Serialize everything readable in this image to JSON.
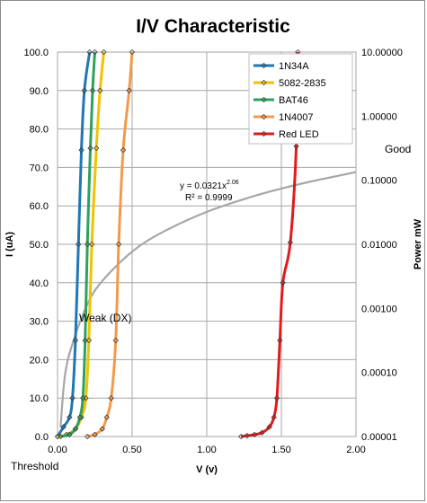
{
  "chart_data": {
    "type": "line",
    "title": "I/V Characteristic",
    "xlabel": "V (v)",
    "ylabel": "I (uA)",
    "y2label": "Power  mW",
    "xlim": [
      0,
      2.0
    ],
    "ylim": [
      0,
      100
    ],
    "y2lim": [
      1e-05,
      10
    ],
    "y2scale": "log",
    "grid": true,
    "legend_position": "top-right",
    "x_ticks": [
      "0.00",
      "0.50",
      "1.00",
      "1.50",
      "2.00"
    ],
    "y_ticks": [
      "0.0",
      "10.0",
      "20.0",
      "30.0",
      "40.0",
      "50.0",
      "60.0",
      "70.0",
      "80.0",
      "90.0",
      "100.0"
    ],
    "y2_ticks": [
      "0.00001",
      "0.00010",
      "0.00100",
      "0.01000",
      "0.10000",
      "1.00000",
      "10.00000"
    ],
    "series": [
      {
        "name": "1N34A",
        "color": "#1f77b4",
        "x": [
          0.0,
          0.04,
          0.08,
          0.1,
          0.12,
          0.14,
          0.16,
          0.18,
          0.215
        ],
        "y": [
          0.0,
          2.5,
          5.0,
          10.0,
          25.0,
          50.0,
          74.5,
          90.0,
          100.0
        ]
      },
      {
        "name": "5082-2835",
        "color": "#f2c200",
        "x": [
          0.0,
          0.06,
          0.12,
          0.16,
          0.19,
          0.21,
          0.23,
          0.26,
          0.285,
          0.31
        ],
        "y": [
          0.0,
          0.5,
          2.0,
          5.0,
          10.0,
          25.0,
          50.0,
          75.0,
          90.0,
          100.0
        ]
      },
      {
        "name": "BAT46",
        "color": "#2ca25f",
        "x": [
          0.02,
          0.08,
          0.12,
          0.15,
          0.17,
          0.185,
          0.2,
          0.22,
          0.235,
          0.25
        ],
        "y": [
          0.0,
          0.5,
          2.0,
          5.0,
          10.0,
          25.0,
          50.0,
          75.0,
          90.0,
          100.0
        ]
      },
      {
        "name": "1N4007",
        "color": "#f39a4a",
        "x": [
          0.2,
          0.25,
          0.3,
          0.33,
          0.36,
          0.39,
          0.41,
          0.44,
          0.48,
          0.5
        ],
        "y": [
          0.0,
          0.5,
          2.0,
          5.0,
          10.0,
          25.0,
          50.0,
          74.5,
          90.0,
          100.0
        ]
      },
      {
        "name": "Red LED",
        "color": "#e31a1c",
        "x": [
          1.23,
          1.27,
          1.32,
          1.37,
          1.42,
          1.45,
          1.47,
          1.49,
          1.51,
          1.56,
          1.6,
          1.61
        ],
        "y": [
          0.0,
          0.2,
          0.5,
          1.0,
          2.5,
          5.0,
          10.0,
          25.0,
          40.0,
          50.5,
          75.5,
          100.0
        ]
      }
    ],
    "power_curve": {
      "color": "#a6a6a6",
      "axis": "y2",
      "x": [
        0.02,
        0.05,
        0.1,
        0.2,
        0.3,
        0.5,
        0.7,
        1.0,
        1.3,
        1.5,
        1.7,
        2.0
      ],
      "y": [
        1.4e-05,
        9.06e-05,
        0.000279,
        0.00116,
        0.00268,
        0.00769,
        0.0153,
        0.0321,
        0.0551,
        0.074,
        0.0958,
        0.134
      ]
    },
    "trendline": {
      "equation": "y = 0.0321x",
      "exponent": "2.06",
      "r_squared": "R² = 0.9999"
    },
    "annotations": {
      "good": "Good",
      "weak": "Weak (DX)",
      "threshold": "Threshold"
    }
  }
}
